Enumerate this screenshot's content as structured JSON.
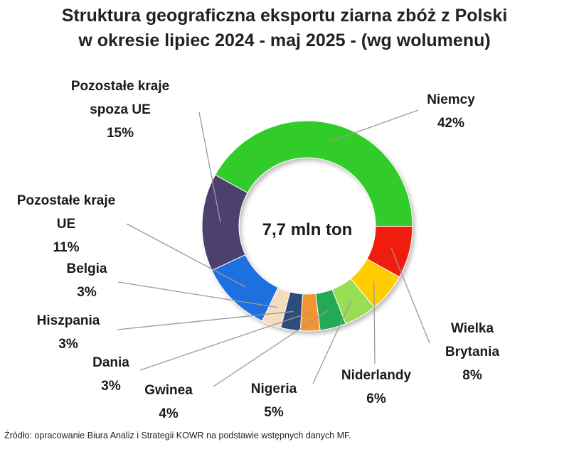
{
  "chart_data": {
    "type": "pie",
    "donut": true,
    "title_line1": "Struktura geograficzna eksportu ziarna zbóż z Polski",
    "title_line2": "w okresie lipiec 2024 - maj 2025 - (wg wolumenu)",
    "center_label": "7,7 mln ton",
    "slices": [
      {
        "name": [
          "Niemcy"
        ],
        "value": 42,
        "label": "42%",
        "color": "#33cc29"
      },
      {
        "name": [
          "Wielka",
          "Brytania"
        ],
        "value": 8,
        "label": "8%",
        "color": "#f01a10"
      },
      {
        "name": [
          "Niderlandy"
        ],
        "value": 6,
        "label": "6%",
        "color": "#ffcc00"
      },
      {
        "name": [
          "Nigeria"
        ],
        "value": 5,
        "label": "5%",
        "color": "#99dd55"
      },
      {
        "name": [
          "Gwinea"
        ],
        "value": 4,
        "label": "4%",
        "color": "#22aa55"
      },
      {
        "name": [
          "Dania"
        ],
        "value": 3,
        "label": "3%",
        "color": "#f39433"
      },
      {
        "name": [
          "Hiszpania"
        ],
        "value": 3,
        "label": "3%",
        "color": "#2e4d7a"
      },
      {
        "name": [
          "Belgia"
        ],
        "value": 3,
        "label": "3%",
        "color": "#f5dcc0"
      },
      {
        "name": [
          "Pozostałe kraje",
          "UE"
        ],
        "value": 11,
        "label": "11%",
        "color": "#1f6fe0"
      },
      {
        "name": [
          "Pozostałe kraje",
          "spoza UE"
        ],
        "value": 15,
        "label": "15%",
        "color": "#4e3f6e"
      }
    ]
  },
  "source": "Źródło: opracowanie Biura Analiz i Strategii KOWR na podstawie wstępnych danych MF."
}
